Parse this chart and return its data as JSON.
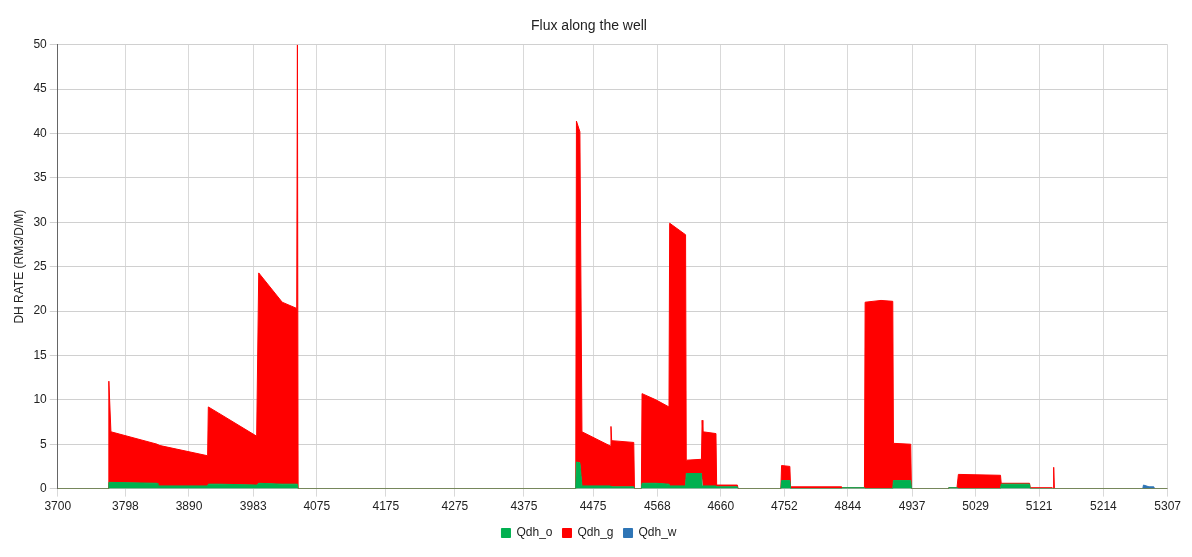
{
  "chart_data": {
    "type": "area",
    "title": "Flux along the well",
    "ylabel": "DH RATE (RM3/D/M)",
    "stacked": true,
    "x": [
      3700,
      3773,
      3774,
      3777,
      3844,
      3845,
      3917,
      3918,
      3933,
      3988,
      3991,
      4025,
      4046,
      4047,
      4048,
      4450,
      4451,
      4456,
      4459,
      4500,
      4501,
      4502,
      4534,
      4535,
      4545,
      4546,
      4566,
      4585,
      4586,
      4609,
      4610,
      4632,
      4633,
      4634,
      4653,
      4654,
      4684,
      4685,
      4747,
      4748,
      4760,
      4761,
      4835,
      4836,
      4868,
      4869,
      4892,
      4909,
      4910,
      4935,
      4936,
      4989,
      4990,
      5002,
      5004,
      5065,
      5066,
      5107,
      5108,
      5140,
      5141,
      5142,
      5143,
      5271,
      5272,
      5280,
      5287,
      5288,
      5307
    ],
    "series": [
      {
        "name": "Qdh_o",
        "color": "#00b050",
        "values": [
          0,
          0,
          0.7,
          0.7,
          0.6,
          0.3,
          0.3,
          0.5,
          0.5,
          0.4,
          0.6,
          0.5,
          0.5,
          0.5,
          0,
          0,
          3.0,
          2.9,
          0.3,
          0.3,
          0.2,
          0.2,
          0.2,
          0,
          0,
          0.6,
          0.6,
          0.5,
          0.3,
          0.3,
          1.7,
          1.7,
          0.3,
          0.3,
          0.3,
          0.2,
          0.2,
          0,
          0,
          0.9,
          0.9,
          0,
          0,
          0.1,
          0.1,
          0,
          0,
          0,
          0.9,
          0.9,
          0,
          0,
          0.1,
          0.1,
          0,
          0,
          0.5,
          0.5,
          0,
          0,
          0,
          0,
          0,
          0,
          0,
          0,
          0,
          0,
          0
        ]
      },
      {
        "name": "Qdh_g",
        "color": "#ff0000",
        "values": [
          0,
          0,
          11.4,
          5.7,
          4.4,
          4.6,
          3.4,
          8.7,
          8.0,
          5.5,
          23.7,
          20.5,
          19.8,
          49.5,
          0,
          0,
          38.4,
          37.3,
          6.1,
          4.5,
          6.8,
          5.2,
          5.0,
          0,
          0,
          10.1,
          9.4,
          8.7,
          29.6,
          28.3,
          1.5,
          1.6,
          7.4,
          6.1,
          5.9,
          0.2,
          0.2,
          0,
          0,
          1.7,
          1.6,
          0.2,
          0.2,
          0,
          0,
          21.0,
          21.2,
          21.1,
          4.2,
          4.1,
          0,
          0,
          0,
          0,
          1.6,
          1.5,
          0.1,
          0.1,
          0.1,
          0.1,
          0,
          2.4,
          0,
          0,
          0,
          0,
          0,
          0,
          0
        ]
      },
      {
        "name": "Qdh_w",
        "color": "#2e75b6",
        "values": [
          null,
          null,
          null,
          null,
          null,
          null,
          null,
          null,
          null,
          null,
          null,
          null,
          null,
          null,
          null,
          null,
          null,
          null,
          null,
          null,
          null,
          null,
          null,
          null,
          null,
          null,
          null,
          null,
          null,
          null,
          null,
          null,
          null,
          null,
          null,
          null,
          null,
          null,
          null,
          null,
          null,
          null,
          null,
          null,
          null,
          null,
          null,
          null,
          null,
          null,
          null,
          null,
          null,
          null,
          null,
          null,
          null,
          null,
          null,
          null,
          null,
          null,
          null,
          0,
          0.4,
          0.2,
          0.2,
          0,
          null
        ]
      }
    ],
    "xlim": [
      3700,
      5307
    ],
    "xticks": [
      3700,
      3798,
      3890,
      3983,
      4075,
      4175,
      4275,
      4375,
      4475,
      4568,
      4660,
      4752,
      4844,
      4937,
      5029,
      5121,
      5214,
      5307
    ],
    "ylim": [
      0,
      50
    ],
    "yticks": [
      0,
      5,
      10,
      15,
      20,
      25,
      30,
      35,
      40,
      45,
      50
    ],
    "grid": true,
    "legend": "bottom"
  }
}
